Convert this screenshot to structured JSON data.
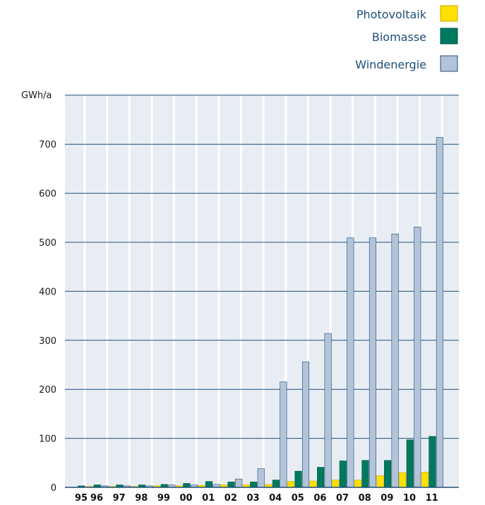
{
  "chart_data": {
    "type": "bar",
    "title": "",
    "xlabel": "",
    "ylabel": "GWh/a",
    "ylim": [
      0,
      700
    ],
    "yticks": [
      0,
      100,
      200,
      300,
      400,
      500,
      600,
      700
    ],
    "grid": true,
    "legend_position": "top-right",
    "categories": [
      "95",
      "96",
      "97",
      "98",
      "99",
      "00",
      "01",
      "02",
      "03",
      "04",
      "05",
      "06",
      "07",
      "08",
      "09",
      "10",
      "11"
    ],
    "series": [
      {
        "name": "Photovoltaik",
        "color": "#ffe000",
        "values": [
          0,
          2,
          2,
          2,
          3,
          3,
          4,
          5,
          5,
          6,
          12,
          13,
          15,
          15,
          24,
          30,
          31
        ]
      },
      {
        "name": "Biomasse",
        "color": "#007a5e",
        "values": [
          3,
          5,
          5,
          5,
          6,
          8,
          12,
          11,
          11,
          15,
          33,
          41,
          54,
          55,
          55,
          97,
          104
        ]
      },
      {
        "name": "Windenergie",
        "color": "#b3c3d8",
        "values": [
          0,
          3,
          3,
          3,
          5,
          5,
          6,
          17,
          38,
          215,
          256,
          314,
          509,
          509,
          517,
          531,
          714
        ]
      }
    ],
    "legend_order": [
      "Photovoltaik",
      "Biomasse",
      "Windenergie"
    ]
  }
}
